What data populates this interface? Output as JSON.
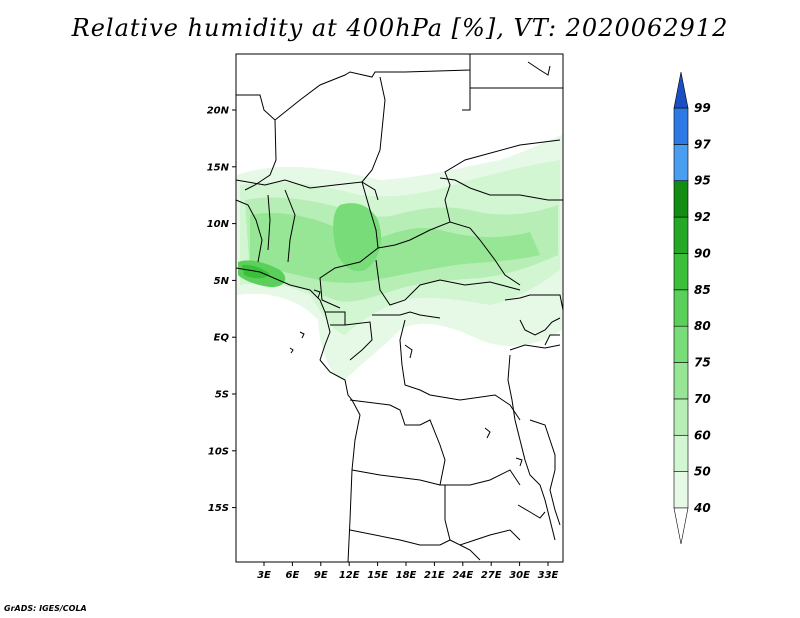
{
  "title": "Relative humidity at 400hPa [%], VT: 2020062912",
  "credit": "GrADS: IGES/COLA",
  "map": {
    "lat_ticks": [
      "20N",
      "15N",
      "10N",
      "5N",
      "EQ",
      "5S",
      "10S",
      "15S"
    ],
    "lon_ticks": [
      "3E",
      "6E",
      "9E",
      "12E",
      "15E",
      "18E",
      "21E",
      "24E",
      "27E",
      "30E",
      "33E"
    ]
  },
  "colorbar": {
    "levels": [
      "40",
      "50",
      "60",
      "70",
      "75",
      "80",
      "85",
      "90",
      "92",
      "95",
      "97",
      "99"
    ],
    "colors": [
      "#e6f9e6",
      "#d2f5d2",
      "#b6eeb6",
      "#96e696",
      "#78dc78",
      "#5ad05a",
      "#3cc03c",
      "#25a825",
      "#128c12",
      "#4a9ef0",
      "#2d7ae6",
      "#1c5cd2"
    ],
    "under_color": "#ffffff",
    "over_color": "#1a4fc4"
  }
}
